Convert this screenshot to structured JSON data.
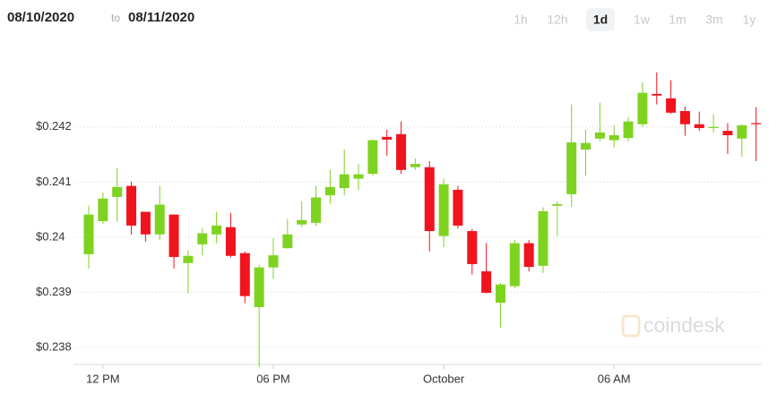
{
  "header": {
    "start_date": "08/10/2020",
    "separator": "to",
    "end_date": "08/11/2020",
    "ranges": [
      "1h",
      "12h",
      "1d",
      "1w",
      "1m",
      "3m",
      "1y"
    ],
    "active_range": "1d"
  },
  "watermark": "coindesk",
  "chart_data": {
    "type": "candlestick",
    "up_color": "#7ed321",
    "down_color": "#f0141e",
    "grid": true,
    "x": [
      -0.5,
      0,
      0.5,
      1,
      1.5,
      2,
      2.5,
      3,
      3.5,
      4,
      4.5,
      5,
      5.5,
      6,
      6.5,
      7,
      7.5,
      8,
      8.5,
      9,
      9.5,
      10,
      10.5,
      11,
      11.5,
      12,
      12.5,
      13,
      13.5,
      14,
      14.5,
      15,
      15.5,
      16,
      16.5,
      17,
      17.5,
      18,
      18.5,
      19,
      19.5,
      20,
      20.5,
      21,
      21.5,
      22,
      22.5,
      23
    ],
    "open": [
      0.23969,
      0.24029,
      0.24073,
      0.24093,
      0.24046,
      0.24005,
      0.24041,
      0.23953,
      0.23987,
      0.24005,
      0.24018,
      0.23971,
      0.23873,
      0.23945,
      0.2398,
      0.24023,
      0.24026,
      0.24076,
      0.24089,
      0.24106,
      0.24115,
      0.24182,
      0.24187,
      0.24127,
      0.24127,
      0.24002,
      0.24086,
      0.24011,
      0.23938,
      0.23881,
      0.23911,
      0.23989,
      0.23948,
      0.24057,
      0.24078,
      0.24159,
      0.24179,
      0.24176,
      0.2418,
      0.24205,
      0.2426,
      0.24252,
      0.24229,
      0.24205,
      0.24198,
      0.24193,
      0.24179,
      0.24207
    ],
    "high": [
      0.24057,
      0.24081,
      0.24125,
      0.24101,
      0.24046,
      0.24093,
      0.24041,
      0.23976,
      0.24016,
      0.24046,
      0.24044,
      0.23974,
      0.2395,
      0.23998,
      0.24033,
      0.24065,
      0.24093,
      0.24122,
      0.24159,
      0.24133,
      0.24177,
      0.24195,
      0.2421,
      0.24143,
      0.24138,
      0.24106,
      0.24093,
      0.24015,
      0.23989,
      0.23917,
      0.23995,
      0.23995,
      0.24054,
      0.24065,
      0.24241,
      0.24195,
      0.24244,
      0.24203,
      0.24218,
      0.24281,
      0.24299,
      0.24285,
      0.24237,
      0.24228,
      0.24223,
      0.24207,
      0.24205,
      0.24236
    ],
    "low": [
      0.23943,
      0.24024,
      0.24028,
      0.24005,
      0.23992,
      0.23995,
      0.23943,
      0.23898,
      0.23967,
      0.23989,
      0.23963,
      0.2388,
      0.23764,
      0.23924,
      0.23979,
      0.24018,
      0.2402,
      0.2406,
      0.24076,
      0.24086,
      0.24112,
      0.24148,
      0.24115,
      0.24122,
      0.23974,
      0.23982,
      0.24016,
      0.23932,
      0.23898,
      0.23836,
      0.23907,
      0.23938,
      0.23935,
      0.24002,
      0.24055,
      0.24112,
      0.24174,
      0.24163,
      0.24174,
      0.242,
      0.24241,
      0.24224,
      0.24184,
      0.24193,
      0.2419,
      0.24151,
      0.24146,
      0.24138
    ],
    "close": [
      0.24041,
      0.2407,
      0.24091,
      0.24021,
      0.24005,
      0.24059,
      0.23964,
      0.23966,
      0.24007,
      0.24021,
      0.23966,
      0.23893,
      0.23945,
      0.23967,
      0.24005,
      0.24031,
      0.24072,
      0.24091,
      0.24114,
      0.24114,
      0.24176,
      0.24177,
      0.24122,
      0.24133,
      0.24011,
      0.24096,
      0.24021,
      0.23951,
      0.23899,
      0.23914,
      0.23989,
      0.23946,
      0.24047,
      0.2406,
      0.24172,
      0.24171,
      0.2419,
      0.24185,
      0.2421,
      0.24262,
      0.24257,
      0.24226,
      0.24205,
      0.24198,
      0.242,
      0.24185,
      0.24203,
      0.24205
    ],
    "xlim": [
      -1.1,
      23.2
    ],
    "xticks": [
      {
        "value": 0,
        "label": "12 PM"
      },
      {
        "value": 6,
        "label": "06 PM"
      },
      {
        "value": 12,
        "label": "October"
      },
      {
        "value": 18,
        "label": "06 AM"
      }
    ],
    "ylim": [
      0.23764,
      0.24333
    ],
    "yticks": [
      {
        "value": 0.238,
        "label": "$0.238"
      },
      {
        "value": 0.239,
        "label": "$0.239"
      },
      {
        "value": 0.24,
        "label": "$0.24"
      },
      {
        "value": 0.241,
        "label": "$0.241"
      },
      {
        "value": 0.242,
        "label": "$0.242"
      }
    ]
  }
}
